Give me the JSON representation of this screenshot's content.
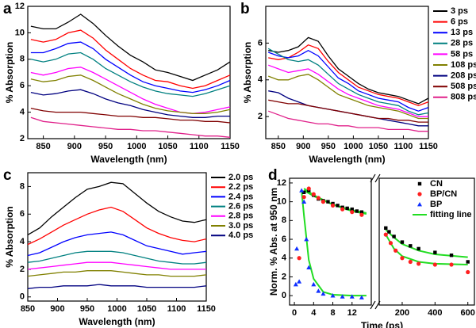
{
  "chart_data": [
    {
      "type": "line",
      "panel_label": "a",
      "x_label": "Wavelength (nm)",
      "y_label": "% Absorption",
      "x": [
        830,
        850,
        870,
        890,
        910,
        930,
        950,
        970,
        990,
        1010,
        1030,
        1050,
        1070,
        1090,
        1110,
        1130,
        1150
      ],
      "xlim": [
        825,
        1150
      ],
      "xticks": [
        850,
        900,
        950,
        1000,
        1050,
        1100,
        1150
      ],
      "ylim": [
        2,
        12
      ],
      "yticks": [
        2,
        4,
        6,
        8,
        10,
        12
      ],
      "legend": false,
      "series": [
        {
          "color": "#000000",
          "values": [
            10.5,
            10.3,
            10.3,
            10.8,
            11.4,
            10.7,
            9.8,
            9.0,
            8.3,
            7.8,
            7.2,
            7.0,
            6.7,
            6.4,
            6.8,
            7.2,
            7.8
          ]
        },
        {
          "color": "#ff0000",
          "values": [
            9.5,
            9.3,
            9.5,
            10.0,
            10.2,
            9.6,
            8.7,
            8.0,
            7.3,
            6.8,
            6.4,
            6.3,
            6.0,
            5.8,
            6.0,
            6.4,
            6.8
          ]
        },
        {
          "color": "#0000ff",
          "values": [
            8.5,
            8.5,
            8.8,
            9.2,
            9.3,
            8.8,
            8.0,
            7.4,
            6.8,
            6.3,
            6.0,
            5.8,
            5.6,
            5.5,
            5.7,
            6.0,
            6.4
          ]
        },
        {
          "color": "#008080",
          "values": [
            8.0,
            7.8,
            8.0,
            8.4,
            8.5,
            8.0,
            7.3,
            6.8,
            6.3,
            5.9,
            5.6,
            5.4,
            5.3,
            5.2,
            5.4,
            5.7,
            6.0
          ]
        },
        {
          "color": "#ff00ff",
          "values": [
            7.0,
            6.8,
            7.0,
            7.3,
            7.4,
            7.0,
            6.5,
            6.0,
            5.5,
            5.0,
            4.6,
            4.3,
            4.0,
            3.9,
            4.0,
            4.2,
            4.4
          ]
        },
        {
          "color": "#808000",
          "values": [
            6.5,
            6.3,
            6.4,
            6.7,
            6.8,
            6.4,
            5.9,
            5.4,
            5.0,
            4.6,
            4.3,
            4.1,
            4.0,
            3.9,
            3.9,
            4.0,
            4.2
          ]
        },
        {
          "color": "#000080",
          "values": [
            5.5,
            5.3,
            5.4,
            5.6,
            5.7,
            5.4,
            5.0,
            4.7,
            4.5,
            4.2,
            4.0,
            3.8,
            3.7,
            3.6,
            3.6,
            3.7,
            3.7
          ]
        },
        {
          "color": "#800000",
          "values": [
            4.3,
            4.1,
            4.0,
            4.0,
            4.0,
            3.9,
            3.8,
            3.7,
            3.7,
            3.6,
            3.6,
            3.5,
            3.4,
            3.4,
            3.3,
            3.3,
            3.2
          ]
        },
        {
          "color": "#e0208a",
          "values": [
            3.6,
            3.3,
            3.2,
            3.1,
            3.0,
            2.9,
            2.8,
            2.7,
            2.7,
            2.6,
            2.6,
            2.5,
            2.4,
            2.3,
            2.2,
            2.2,
            2.1
          ]
        }
      ]
    },
    {
      "type": "line",
      "panel_label": "b",
      "x_label": "Wavelength (nm)",
      "y_label": "% Absorption",
      "x": [
        830,
        850,
        870,
        890,
        910,
        930,
        950,
        970,
        990,
        1010,
        1030,
        1050,
        1070,
        1090,
        1110,
        1130,
        1150
      ],
      "xlim": [
        825,
        1150
      ],
      "xticks": [
        850,
        900,
        950,
        1000,
        1050,
        1100,
        1150
      ],
      "ylim": [
        0.8,
        8
      ],
      "yticks": [
        2,
        4,
        6
      ],
      "legend": true,
      "series": [
        {
          "name": "3 ps",
          "color": "#000000",
          "values": [
            5.6,
            5.5,
            5.6,
            5.8,
            6.3,
            6.1,
            5.3,
            4.6,
            4.2,
            3.8,
            3.5,
            3.3,
            3.2,
            3.1,
            2.9,
            2.7,
            3.0
          ]
        },
        {
          "name": "6 ps",
          "color": "#ff0000",
          "values": [
            5.2,
            5.1,
            5.2,
            5.5,
            5.9,
            5.7,
            5.0,
            4.4,
            4.0,
            3.6,
            3.4,
            3.2,
            3.1,
            3.0,
            2.8,
            2.6,
            2.8
          ]
        },
        {
          "name": "13 ps",
          "color": "#0000ff",
          "values": [
            5.5,
            5.3,
            5.2,
            5.3,
            5.6,
            5.3,
            4.7,
            4.1,
            3.8,
            3.4,
            3.2,
            3.0,
            2.9,
            2.8,
            2.5,
            2.3,
            2.5
          ]
        },
        {
          "name": "28 ps",
          "color": "#008080",
          "values": [
            5.7,
            5.4,
            5.1,
            5.0,
            5.1,
            4.8,
            4.3,
            3.8,
            3.5,
            3.2,
            3.0,
            2.8,
            2.7,
            2.6,
            2.3,
            2.1,
            2.2
          ]
        },
        {
          "name": "58 ps",
          "color": "#ff00ff",
          "values": [
            4.8,
            4.6,
            4.4,
            4.5,
            4.6,
            4.3,
            3.9,
            3.5,
            3.2,
            3.0,
            2.8,
            2.6,
            2.5,
            2.4,
            2.2,
            2.0,
            2.0
          ]
        },
        {
          "name": "108 ps",
          "color": "#808000",
          "values": [
            4.2,
            4.0,
            4.0,
            4.2,
            4.3,
            4.0,
            3.6,
            3.2,
            3.0,
            2.8,
            2.6,
            2.5,
            2.4,
            2.3,
            2.1,
            1.9,
            1.9
          ]
        },
        {
          "name": "208 ps",
          "color": "#000080",
          "values": [
            3.4,
            3.3,
            3.0,
            2.8,
            2.6,
            2.5,
            2.4,
            2.3,
            2.2,
            2.1,
            2.0,
            1.9,
            1.8,
            1.7,
            1.6,
            1.5,
            1.5
          ]
        },
        {
          "name": "508 ps",
          "color": "#800000",
          "values": [
            2.9,
            2.8,
            2.7,
            2.7,
            2.6,
            2.5,
            2.4,
            2.3,
            2.2,
            2.1,
            2.0,
            1.9,
            1.9,
            1.8,
            1.8,
            1.7,
            1.7
          ]
        },
        {
          "name": "808 ps",
          "color": "#e0208a",
          "values": [
            2.3,
            2.1,
            1.9,
            1.8,
            1.7,
            1.6,
            1.6,
            1.5,
            1.5,
            1.4,
            1.4,
            1.4,
            1.3,
            1.3,
            1.3,
            1.2,
            1.2
          ]
        }
      ]
    },
    {
      "type": "line",
      "panel_label": "c",
      "x_label": "Wavelength (nm)",
      "y_label": "% Absorption",
      "x": [
        850,
        870,
        890,
        910,
        930,
        950,
        970,
        990,
        1010,
        1030,
        1050,
        1070,
        1090,
        1110,
        1130,
        1150
      ],
      "xlim": [
        850,
        1150
      ],
      "xticks": [
        850,
        900,
        950,
        1000,
        1050,
        1100,
        1150
      ],
      "ylim": [
        -0.3,
        9
      ],
      "yticks": [
        0,
        2,
        4,
        6,
        8
      ],
      "legend": true,
      "series": [
        {
          "name": "2.0 ps",
          "color": "#000000",
          "values": [
            4.5,
            5.0,
            5.8,
            6.5,
            7.2,
            7.8,
            8.0,
            8.3,
            8.2,
            7.5,
            6.8,
            6.2,
            5.8,
            5.5,
            5.4,
            5.6
          ]
        },
        {
          "name": "2.2 ps",
          "color": "#ff0000",
          "values": [
            3.8,
            4.2,
            4.7,
            5.2,
            5.6,
            6.0,
            6.3,
            6.5,
            6.2,
            5.6,
            5.0,
            4.6,
            4.3,
            4.1,
            4.0,
            4.2
          ]
        },
        {
          "name": "2.4 ps",
          "color": "#0000ff",
          "values": [
            3.0,
            3.2,
            3.6,
            4.0,
            4.3,
            4.5,
            4.6,
            4.7,
            4.5,
            4.1,
            3.7,
            3.5,
            3.3,
            3.1,
            3.2,
            3.3
          ]
        },
        {
          "name": "2.6 ps",
          "color": "#008080",
          "values": [
            2.5,
            2.6,
            2.8,
            3.0,
            3.2,
            3.3,
            3.3,
            3.3,
            3.2,
            3.0,
            2.8,
            2.6,
            2.5,
            2.4,
            2.4,
            2.5
          ]
        },
        {
          "name": "2.8 ps",
          "color": "#ff00ff",
          "values": [
            2.0,
            2.1,
            2.2,
            2.3,
            2.4,
            2.5,
            2.5,
            2.5,
            2.4,
            2.3,
            2.2,
            2.1,
            2.0,
            2.0,
            2.0,
            2.0
          ]
        },
        {
          "name": "3.0 ps",
          "color": "#808000",
          "values": [
            1.5,
            1.6,
            1.7,
            1.8,
            1.8,
            1.9,
            1.9,
            1.9,
            1.8,
            1.7,
            1.6,
            1.6,
            1.5,
            1.5,
            1.5,
            1.6
          ]
        },
        {
          "name": "4.0 ps",
          "color": "#000080",
          "values": [
            0.6,
            0.7,
            0.7,
            0.8,
            0.8,
            0.8,
            0.9,
            0.8,
            0.8,
            0.8,
            0.7,
            0.7,
            0.7,
            0.7,
            0.7,
            0.8
          ]
        }
      ]
    },
    {
      "type": "scatter",
      "panel_label": "d",
      "x_label": "Time (ps)",
      "y_label": "Norm. % Abs. at 950 nm",
      "xsegments": [
        {
          "xlim": [
            -1,
            16
          ],
          "xticks": [
            0,
            4,
            8,
            12
          ]
        },
        {
          "xlim": [
            60,
            640
          ],
          "xticks": [
            200,
            400,
            600
          ]
        }
      ],
      "ylim": [
        -1,
        12.5
      ],
      "yticks": [
        0,
        2,
        4,
        6,
        8,
        10,
        12
      ],
      "legend": true,
      "series": [
        {
          "name": "CN",
          "color": "#000000",
          "marker": "square",
          "x": [
            2,
            3,
            4,
            5,
            6,
            7,
            8,
            9,
            10,
            11,
            12,
            13,
            14,
            100,
            120,
            150,
            200,
            250,
            300,
            400,
            500,
            600
          ],
          "y": [
            11.0,
            11.2,
            10.7,
            10.3,
            10.1,
            10.0,
            9.8,
            9.6,
            9.4,
            9.3,
            9.2,
            9.0,
            8.9,
            7.2,
            6.8,
            6.3,
            5.7,
            5.3,
            5.0,
            4.6,
            4.3,
            3.6
          ]
        },
        {
          "name": "BP/CN",
          "color": "#ff2020",
          "marker": "circle",
          "x": [
            1,
            2,
            3,
            4,
            5,
            6,
            8,
            10,
            12,
            14,
            100,
            130,
            160,
            200,
            250,
            300,
            400,
            500,
            600
          ],
          "y": [
            4.0,
            10.5,
            11.4,
            10.8,
            10.4,
            10.0,
            9.6,
            9.2,
            8.9,
            8.6,
            6.5,
            5.6,
            4.8,
            4.0,
            3.6,
            3.4,
            3.3,
            3.3,
            2.5
          ]
        },
        {
          "name": "BP",
          "color": "#1030ff",
          "marker": "triangle",
          "x": [
            0.3,
            0.5,
            1,
            1.5,
            2,
            2.5,
            3,
            4,
            5,
            6,
            8,
            10,
            12,
            14
          ],
          "y": [
            1.2,
            5.0,
            1.5,
            11.2,
            10.0,
            6.0,
            3.0,
            1.2,
            0.5,
            0.2,
            0,
            -0.1,
            -0.1,
            -0.2
          ]
        }
      ],
      "fits": {
        "name": "fitting line",
        "color": "#22dd22",
        "lines": [
          {
            "x": [
              2,
              4,
              8,
              12,
              15
            ],
            "y": [
              11.2,
              10.6,
              9.7,
              9.1,
              8.8
            ]
          },
          {
            "x": [
              100,
              150,
              200,
              300,
              400,
              600
            ],
            "y": [
              7.0,
              6.2,
              5.5,
              4.8,
              4.4,
              4.1
            ]
          },
          {
            "x": [
              2,
              4,
              8,
              12,
              15
            ],
            "y": [
              11.4,
              10.7,
              9.7,
              9.0,
              8.7
            ]
          },
          {
            "x": [
              100,
              150,
              200,
              300,
              400,
              600
            ],
            "y": [
              6.5,
              5.0,
              4.2,
              3.6,
              3.4,
              3.3
            ]
          },
          {
            "x": [
              1.5,
              2,
              3,
              4,
              6,
              8,
              12,
              15
            ],
            "y": [
              11.2,
              8.5,
              3.8,
              1.8,
              0.4,
              0.1,
              0,
              0
            ]
          }
        ]
      }
    }
  ]
}
